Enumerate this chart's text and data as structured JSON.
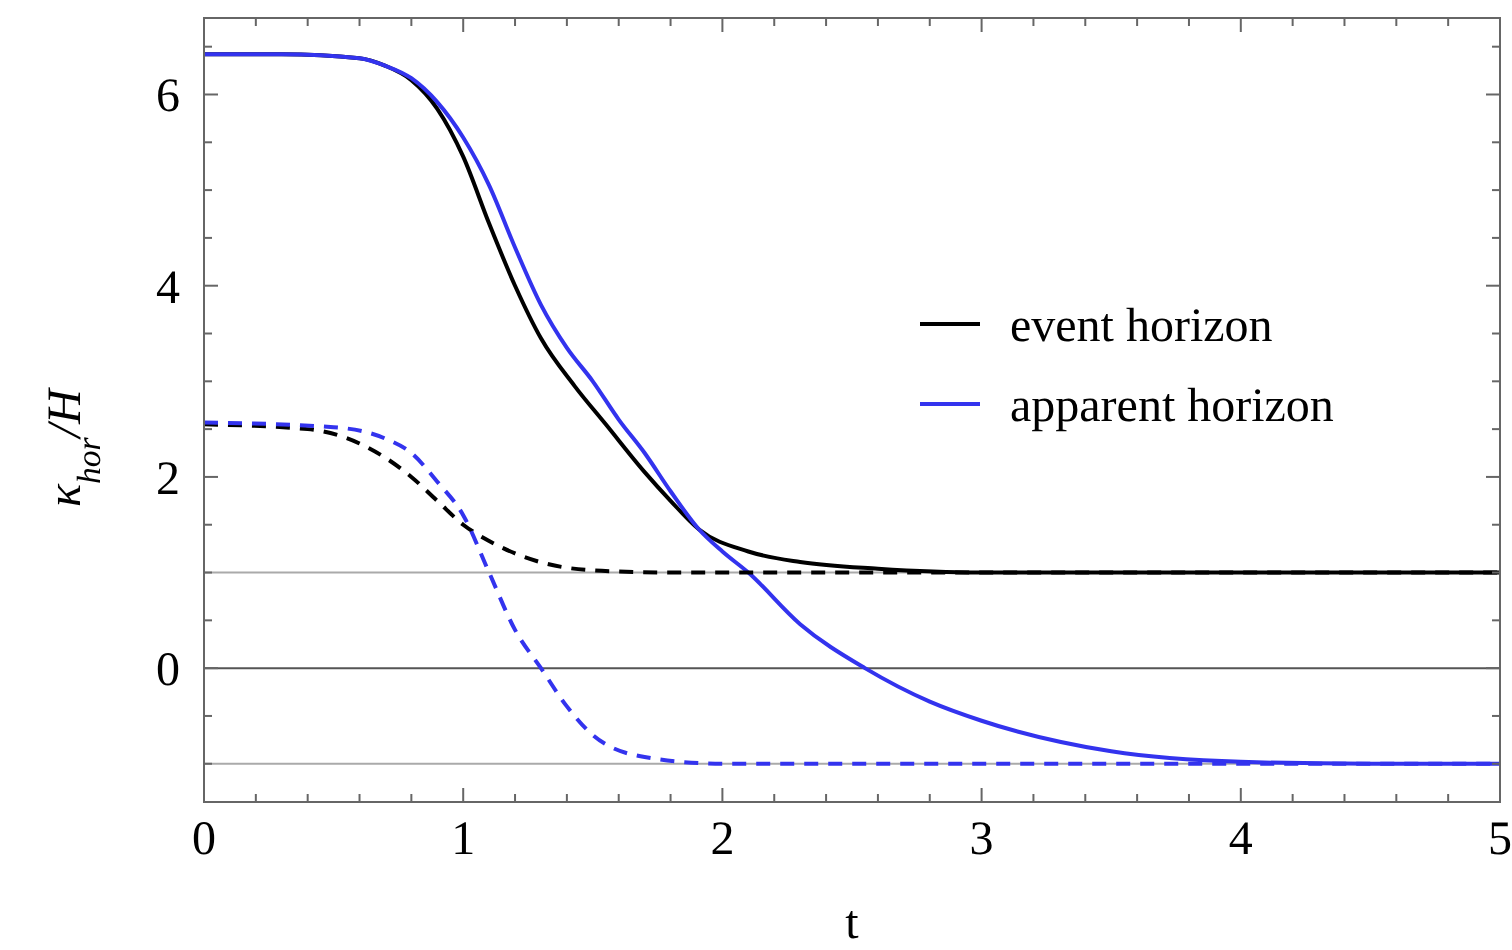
{
  "chart_data": {
    "type": "line",
    "xlabel": "t",
    "ylabel": "κ$_{hor}$/H",
    "xlim": [
      0,
      5
    ],
    "ylim": [
      -1.4,
      6.8
    ],
    "xticks": [
      0,
      {
        "value": 0.2,
        "label": null
      },
      {
        "value": 0.4,
        "label": null
      },
      {
        "value": 0.6,
        "label": null
      },
      {
        "value": 0.8,
        "label": null
      },
      1,
      {
        "value": 1.2,
        "label": null
      },
      {
        "value": 1.4,
        "label": null
      },
      {
        "value": 1.6,
        "label": null
      },
      {
        "value": 1.8,
        "label": null
      },
      2,
      {
        "value": 2.2,
        "label": null
      },
      {
        "value": 2.4,
        "label": null
      },
      {
        "value": 2.6,
        "label": null
      },
      {
        "value": 2.8,
        "label": null
      },
      3,
      {
        "value": 3.2,
        "label": null
      },
      {
        "value": 3.4,
        "label": null
      },
      {
        "value": 3.6,
        "label": null
      },
      {
        "value": 3.8,
        "label": null
      },
      4,
      {
        "value": 4.2,
        "label": null
      },
      {
        "value": 4.4,
        "label": null
      },
      {
        "value": 4.6,
        "label": null
      },
      {
        "value": 4.8,
        "label": null
      },
      5
    ],
    "yticks": [
      {
        "value": -1,
        "label": null
      },
      {
        "value": -0.5,
        "label": null
      },
      0,
      {
        "value": 0.5,
        "label": null
      },
      {
        "value": 1,
        "label": null
      },
      {
        "value": 1.5,
        "label": null
      },
      2,
      {
        "value": 2.5,
        "label": null
      },
      {
        "value": 3,
        "label": null
      },
      {
        "value": 3.5,
        "label": null
      },
      4,
      {
        "value": 4.5,
        "label": null
      },
      {
        "value": 5,
        "label": null
      },
      {
        "value": 5.5,
        "label": null
      },
      6,
      {
        "value": 6.5,
        "label": null
      }
    ],
    "grid": false,
    "legend": "right",
    "marker": "none",
    "ref_lines": [
      {
        "axis": "y",
        "value": 1,
        "color": "#aaaaaa"
      },
      {
        "axis": "y",
        "value": 0,
        "color": "#555555"
      },
      {
        "axis": "y",
        "value": -1,
        "color": "#aaaaaa"
      }
    ],
    "series": [
      {
        "name": "event horizon",
        "color": "#000000",
        "line_style": "solid",
        "x": [
          0,
          0.3,
          0.6,
          0.7,
          0.8,
          0.9,
          1.0,
          1.1,
          1.2,
          1.3,
          1.43,
          1.55,
          1.7,
          1.8,
          1.91,
          2.1,
          2.3,
          2.6,
          3.0,
          3.5,
          5
        ],
        "values": [
          6.42,
          6.42,
          6.38,
          6.3,
          6.15,
          5.85,
          5.35,
          4.65,
          4.0,
          3.45,
          2.95,
          2.55,
          2.05,
          1.75,
          1.45,
          1.22,
          1.11,
          1.04,
          1.0,
          1.0,
          1.0
        ]
      },
      {
        "name": "apparent horizon",
        "color": "#3333ee",
        "line_style": "solid",
        "x": [
          0,
          0.3,
          0.6,
          0.7,
          0.8,
          0.9,
          1.0,
          1.1,
          1.2,
          1.3,
          1.4,
          1.5,
          1.6,
          1.7,
          1.8,
          1.91,
          2.0,
          2.1,
          2.3,
          2.55,
          2.8,
          3.0,
          3.5,
          4.0,
          4.5,
          5
        ],
        "values": [
          6.42,
          6.42,
          6.38,
          6.3,
          6.17,
          5.92,
          5.55,
          5.05,
          4.4,
          3.8,
          3.35,
          3.0,
          2.6,
          2.25,
          1.85,
          1.45,
          1.22,
          1.0,
          0.46,
          0.0,
          -0.35,
          -0.55,
          -0.87,
          -0.98,
          -1.0,
          -1.0
        ]
      },
      {
        "color": "#000000",
        "line_style": "dashed",
        "x": [
          0,
          0.4,
          0.6,
          0.7,
          0.8,
          0.9,
          1.0,
          1.1,
          1.2,
          1.4,
          1.6,
          1.8,
          5
        ],
        "values": [
          2.55,
          2.5,
          2.35,
          2.2,
          2.0,
          1.75,
          1.5,
          1.33,
          1.2,
          1.05,
          1.01,
          1.0,
          1.0
        ]
      },
      {
        "color": "#3333ee",
        "line_style": "dashed",
        "x": [
          0,
          0.5,
          0.7,
          0.8,
          0.9,
          1.0,
          1.1,
          1.2,
          1.3,
          1.4,
          1.5,
          1.7,
          2.0,
          5
        ],
        "values": [
          2.57,
          2.52,
          2.4,
          2.25,
          1.95,
          1.6,
          1.0,
          0.4,
          0.0,
          -0.4,
          -0.7,
          -0.93,
          -1.0,
          -1.0
        ]
      }
    ]
  }
}
